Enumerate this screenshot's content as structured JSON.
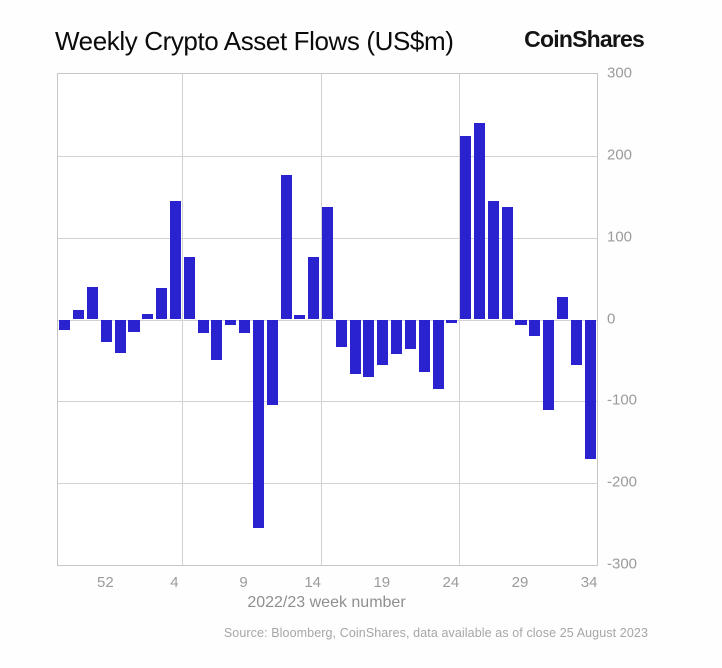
{
  "header": {
    "title": "Weekly Crypto Asset Flows (US$m)",
    "logo": "CoinShares"
  },
  "chart_data": {
    "type": "bar",
    "title": "Weekly Crypto Asset Flows (US$m)",
    "xlabel": "2022/23 week number",
    "ylabel": "",
    "ylim": [
      -300,
      300
    ],
    "y_ticks": [
      300,
      200,
      100,
      0,
      -100,
      -200,
      -300
    ],
    "grid": true,
    "legend_position": "none",
    "bar_color": "#2a21cf",
    "categories": [
      "49",
      "50",
      "51",
      "52",
      "53",
      "1",
      "2",
      "3",
      "4",
      "5",
      "6",
      "7",
      "8",
      "9",
      "10",
      "11",
      "12",
      "13",
      "14",
      "15",
      "16",
      "17",
      "18",
      "19",
      "20",
      "21",
      "22",
      "23",
      "24",
      "25",
      "26",
      "27",
      "28",
      "29",
      "30",
      "31",
      "32",
      "33",
      "34"
    ],
    "values": [
      -13,
      12,
      40,
      -28,
      -41,
      -15,
      7,
      38,
      145,
      76,
      -16,
      -49,
      -7,
      -16,
      -255,
      -104,
      177,
      6,
      76,
      138,
      -33,
      -66,
      -70,
      -56,
      -42,
      -36,
      -64,
      -85,
      -4,
      224,
      240,
      145,
      137,
      -7,
      -20,
      -110,
      28,
      -55,
      -170
    ],
    "x_tick_labels": [
      "52",
      "4",
      "9",
      "14",
      "19",
      "24",
      "29",
      "34"
    ],
    "v_gridlines_after_weeks": [
      "4",
      "14",
      "24"
    ]
  },
  "footer": {
    "source": "Source: Bloomberg, CoinShares, data available as of close 25 August 2023"
  }
}
